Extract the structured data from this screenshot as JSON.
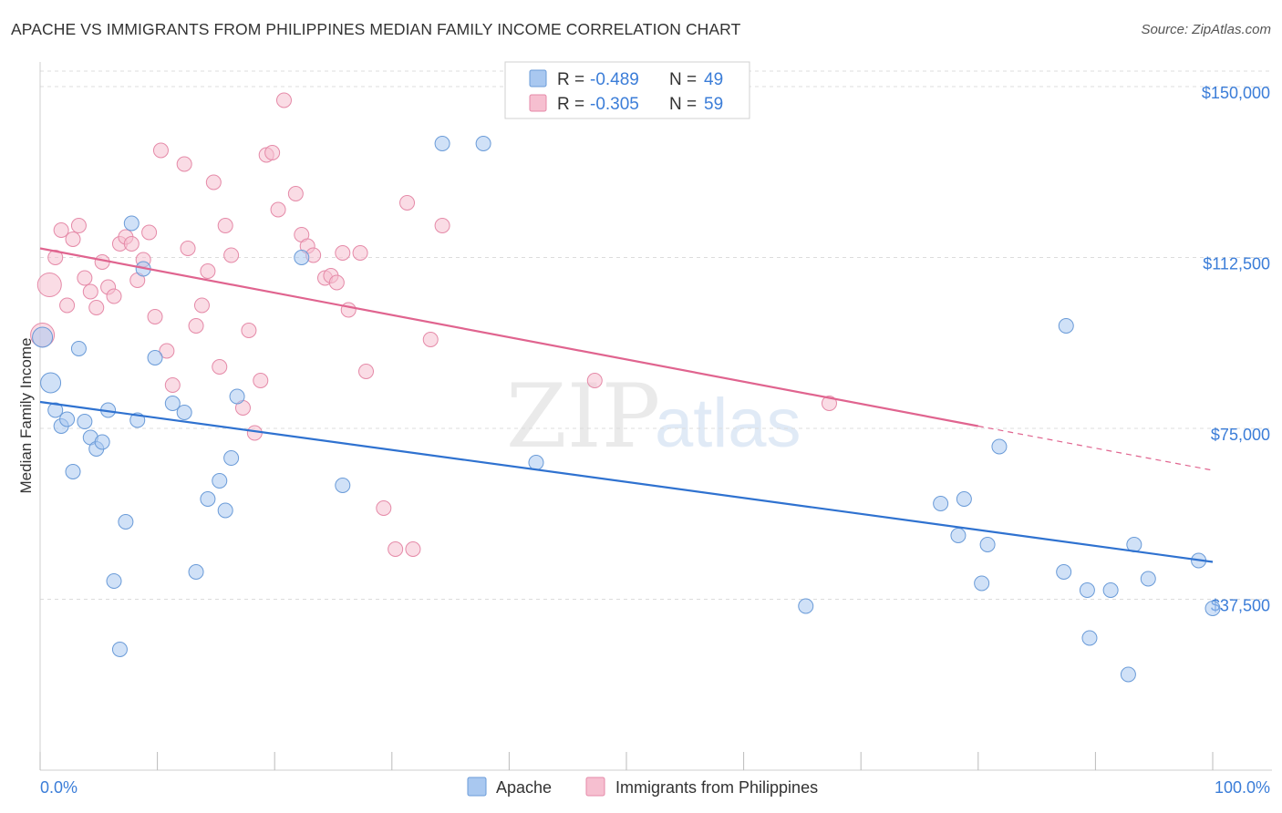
{
  "title": "APACHE VS IMMIGRANTS FROM PHILIPPINES MEDIAN FAMILY INCOME CORRELATION CHART",
  "source": "Source: ZipAtlas.com",
  "watermark": {
    "zip": "ZIP",
    "atlas": "atlas"
  },
  "colors": {
    "apache_fill": "#a9c8f0",
    "apache_stroke": "#6a9bd8",
    "apache_line": "#2f72d0",
    "phil_fill": "#f6bfd0",
    "phil_stroke": "#e58aa8",
    "phil_line": "#e0648f",
    "tick_text": "#3b7dd8",
    "grid": "#dcdcdc"
  },
  "legend": {
    "rows": [
      {
        "r_label": "R =",
        "r_value": "-0.489",
        "n_label": "N =",
        "n_value": "49"
      },
      {
        "r_label": "R =",
        "r_value": "-0.305",
        "n_label": "N =",
        "n_value": "59"
      }
    ]
  },
  "chart_data": {
    "type": "scatter",
    "title": "APACHE VS IMMIGRANTS FROM PHILIPPINES MEDIAN FAMILY INCOME CORRELATION CHART",
    "xlabel": "",
    "ylabel": "Median Family Income",
    "xlim": [
      0,
      100
    ],
    "ylim": [
      0,
      155000
    ],
    "x_tick_labels": [
      "0.0%",
      "100.0%"
    ],
    "y_ticks": [
      37500,
      75000,
      112500,
      150000
    ],
    "y_tick_labels": [
      "$37,500",
      "$75,000",
      "$112,500",
      "$150,000"
    ],
    "series": [
      {
        "name": "Apache",
        "r": -0.489,
        "n": 49,
        "trend": {
          "x0": 0,
          "y0": 80800,
          "x1": 100,
          "y1": 45700
        },
        "points": [
          [
            0.2,
            95000
          ],
          [
            0.9,
            85000
          ],
          [
            1.3,
            79000
          ],
          [
            1.8,
            75500
          ],
          [
            2.3,
            77000
          ],
          [
            2.8,
            65500
          ],
          [
            3.3,
            92500
          ],
          [
            3.8,
            76500
          ],
          [
            4.3,
            73000
          ],
          [
            4.8,
            70500
          ],
          [
            5.3,
            72000
          ],
          [
            5.8,
            79000
          ],
          [
            6.3,
            41500
          ],
          [
            6.8,
            26500
          ],
          [
            7.3,
            54500
          ],
          [
            7.8,
            120000
          ],
          [
            8.3,
            76800
          ],
          [
            8.8,
            110000
          ],
          [
            9.8,
            90500
          ],
          [
            11.3,
            80500
          ],
          [
            12.3,
            78500
          ],
          [
            13.3,
            43500
          ],
          [
            14.3,
            59500
          ],
          [
            15.3,
            63500
          ],
          [
            15.8,
            57000
          ],
          [
            16.3,
            68500
          ],
          [
            16.8,
            82000
          ],
          [
            22.3,
            112500
          ],
          [
            25.8,
            62500
          ],
          [
            34.3,
            137500
          ],
          [
            37.8,
            137500
          ],
          [
            42.3,
            67500
          ],
          [
            65.3,
            36000
          ],
          [
            76.8,
            58500
          ],
          [
            78.3,
            51500
          ],
          [
            78.8,
            59500
          ],
          [
            80.3,
            41000
          ],
          [
            80.8,
            49500
          ],
          [
            81.8,
            71000
          ],
          [
            87.3,
            43500
          ],
          [
            87.5,
            97500
          ],
          [
            89.3,
            39500
          ],
          [
            89.5,
            29000
          ],
          [
            91.3,
            39500
          ],
          [
            92.8,
            21000
          ],
          [
            93.3,
            49500
          ],
          [
            94.5,
            42000
          ],
          [
            98.8,
            46000
          ],
          [
            100.0,
            35500
          ]
        ]
      },
      {
        "name": "Immigrants from Philippines",
        "r": -0.305,
        "n": 59,
        "trend": {
          "x0": 0,
          "y0": 114500,
          "x1": 80,
          "y1": 75500,
          "dash_x1": 100,
          "dash_y1": 65800
        },
        "points": [
          [
            0.2,
            95500
          ],
          [
            0.8,
            106500
          ],
          [
            1.3,
            112500
          ],
          [
            1.8,
            118500
          ],
          [
            2.3,
            102000
          ],
          [
            2.8,
            116500
          ],
          [
            3.3,
            119500
          ],
          [
            3.8,
            108000
          ],
          [
            4.3,
            105000
          ],
          [
            4.8,
            101500
          ],
          [
            5.3,
            111500
          ],
          [
            5.8,
            106000
          ],
          [
            6.3,
            104000
          ],
          [
            6.8,
            115500
          ],
          [
            7.3,
            117000
          ],
          [
            7.8,
            115500
          ],
          [
            8.3,
            107500
          ],
          [
            8.8,
            112000
          ],
          [
            9.3,
            118000
          ],
          [
            9.8,
            99500
          ],
          [
            10.3,
            136000
          ],
          [
            10.8,
            92000
          ],
          [
            11.3,
            84500
          ],
          [
            12.3,
            133000
          ],
          [
            12.6,
            114500
          ],
          [
            13.3,
            97500
          ],
          [
            13.8,
            102000
          ],
          [
            14.3,
            109500
          ],
          [
            14.8,
            129000
          ],
          [
            15.3,
            88500
          ],
          [
            15.8,
            119500
          ],
          [
            16.3,
            113000
          ],
          [
            17.3,
            79500
          ],
          [
            17.8,
            96500
          ],
          [
            18.3,
            74000
          ],
          [
            18.8,
            85500
          ],
          [
            19.3,
            135000
          ],
          [
            19.8,
            135500
          ],
          [
            20.3,
            123000
          ],
          [
            20.8,
            147000
          ],
          [
            21.8,
            126500
          ],
          [
            22.3,
            117500
          ],
          [
            22.8,
            115000
          ],
          [
            23.3,
            113000
          ],
          [
            24.3,
            108000
          ],
          [
            24.8,
            108500
          ],
          [
            25.3,
            107000
          ],
          [
            25.8,
            113500
          ],
          [
            26.3,
            101000
          ],
          [
            27.3,
            113500
          ],
          [
            27.8,
            87500
          ],
          [
            29.3,
            57500
          ],
          [
            30.3,
            48500
          ],
          [
            31.3,
            124500
          ],
          [
            31.8,
            48500
          ],
          [
            33.3,
            94500
          ],
          [
            34.3,
            119500
          ],
          [
            47.3,
            85500
          ],
          [
            67.3,
            80500
          ]
        ]
      }
    ]
  },
  "bottom_legend": {
    "apache": "Apache",
    "phil": "Immigrants from Philippines"
  }
}
